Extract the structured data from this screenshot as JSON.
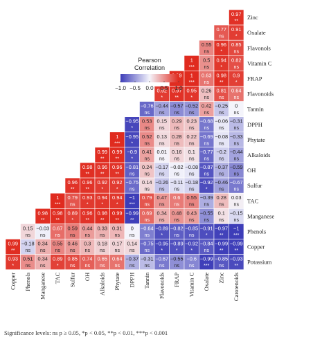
{
  "chart_data": {
    "type": "heatmap",
    "layout": "lower-triangular correlation matrix",
    "row_labels": [
      "Zinc",
      "Oxalate",
      "Flavonols",
      "Vitamin C",
      "FRAP",
      "Flavonoids",
      "Tannin",
      "DPPH",
      "Phytate",
      "Alkaloids",
      "OH",
      "Sulfur",
      "TAC",
      "Manganese",
      "Phenols",
      "Copper",
      "Potassium"
    ],
    "column_labels": [
      "Copper",
      "Phenols",
      "Manganese",
      "TAC",
      "Sulfur",
      "OH",
      "Alkaloids",
      "Phytate",
      "DPPH",
      "Tannin",
      "Flavonoids",
      "FRAP",
      "Vitamin C",
      "Oxalate",
      "Zinc",
      "Carotenoids"
    ],
    "values": [
      [
        null,
        null,
        null,
        null,
        null,
        null,
        null,
        null,
        null,
        null,
        null,
        null,
        null,
        null,
        null,
        0.97
      ],
      [
        null,
        null,
        null,
        null,
        null,
        null,
        null,
        null,
        null,
        null,
        null,
        null,
        null,
        null,
        0.77,
        0.91
      ],
      [
        null,
        null,
        null,
        null,
        null,
        null,
        null,
        null,
        null,
        null,
        null,
        null,
        null,
        0.55,
        0.96,
        0.85
      ],
      [
        null,
        null,
        null,
        null,
        null,
        null,
        null,
        null,
        null,
        null,
        null,
        null,
        1,
        0.5,
        0.94,
        0.82
      ],
      [
        null,
        null,
        null,
        null,
        null,
        null,
        null,
        null,
        null,
        null,
        null,
        0.99,
        1,
        0.63,
        0.98,
        0.9
      ],
      [
        null,
        null,
        null,
        null,
        null,
        null,
        null,
        null,
        null,
        null,
        0.92,
        0.97,
        0.95,
        0.26,
        0.81,
        0.64
      ],
      [
        null,
        null,
        null,
        null,
        null,
        null,
        null,
        null,
        null,
        -0.76,
        -0.44,
        -0.57,
        -0.52,
        0.42,
        -0.25,
        0
      ],
      [
        null,
        null,
        null,
        null,
        null,
        null,
        null,
        null,
        -0.95,
        0.53,
        0.15,
        0.29,
        0.23,
        -0.68,
        -0.06,
        -0.31
      ],
      [
        null,
        null,
        null,
        null,
        null,
        null,
        null,
        1,
        -0.95,
        0.52,
        0.13,
        0.28,
        0.22,
        -0.69,
        -0.08,
        -0.33
      ],
      [
        null,
        null,
        null,
        null,
        null,
        null,
        0.99,
        0.99,
        -0.9,
        0.41,
        0.01,
        0.16,
        0.1,
        -0.77,
        -0.2,
        -0.44
      ],
      [
        null,
        null,
        null,
        null,
        null,
        0.98,
        0.96,
        0.96,
        -0.81,
        0.24,
        -0.17,
        -0.02,
        -0.08,
        -0.87,
        -0.37,
        -0.59
      ],
      [
        null,
        null,
        null,
        null,
        0.96,
        0.96,
        0.92,
        0.92,
        -0.75,
        0.14,
        -0.26,
        -0.11,
        -0.18,
        -0.92,
        -0.46,
        -0.67
      ],
      [
        null,
        null,
        null,
        1,
        0.79,
        0.93,
        0.94,
        0.94,
        -1,
        0.79,
        0.47,
        0.6,
        0.55,
        -0.39,
        0.28,
        0.03
      ],
      [
        null,
        null,
        0.98,
        0.98,
        0.89,
        0.96,
        0.98,
        0.99,
        -0.99,
        0.69,
        0.34,
        0.48,
        0.43,
        -0.55,
        0.1,
        -0.15
      ],
      [
        null,
        0.15,
        -0.03,
        0.67,
        0.59,
        0.44,
        0.33,
        0.31,
        0,
        -0.64,
        -0.89,
        -0.82,
        -0.85,
        -0.91,
        -0.97,
        -1
      ],
      [
        0.99,
        -0.18,
        0.34,
        0.55,
        0.46,
        0.3,
        0.18,
        0.17,
        0.14,
        -0.75,
        -0.95,
        -0.89,
        -0.92,
        -0.84,
        -0.99,
        -0.99
      ],
      [
        0.93,
        0.51,
        0.34,
        0.89,
        0.85,
        0.74,
        0.65,
        0.64,
        -0.37,
        -0.31,
        -0.67,
        -0.55,
        -0.6,
        -0.99,
        -0.85,
        -0.93
      ]
    ],
    "significance": [
      [
        null,
        null,
        null,
        null,
        null,
        null,
        null,
        null,
        null,
        null,
        null,
        null,
        null,
        null,
        null,
        "**"
      ],
      [
        null,
        null,
        null,
        null,
        null,
        null,
        null,
        null,
        null,
        null,
        null,
        null,
        null,
        null,
        "ns",
        "*"
      ],
      [
        null,
        null,
        null,
        null,
        null,
        null,
        null,
        null,
        null,
        null,
        null,
        null,
        null,
        "ns",
        "*",
        "ns"
      ],
      [
        null,
        null,
        null,
        null,
        null,
        null,
        null,
        null,
        null,
        null,
        null,
        null,
        "***",
        "ns",
        "*",
        "ns"
      ],
      [
        null,
        null,
        null,
        null,
        null,
        null,
        null,
        null,
        null,
        null,
        null,
        "**",
        "***",
        "ns",
        "**",
        "*"
      ],
      [
        null,
        null,
        null,
        null,
        null,
        null,
        null,
        null,
        null,
        null,
        "*",
        "**",
        "*",
        "ns",
        "ns",
        "ns"
      ],
      [
        null,
        null,
        null,
        null,
        null,
        null,
        null,
        null,
        null,
        "ns",
        "ns",
        "ns",
        "ns",
        "ns",
        "ns",
        "ns"
      ],
      [
        null,
        null,
        null,
        null,
        null,
        null,
        null,
        null,
        "*",
        "ns",
        "ns",
        "ns",
        "ns",
        "ns",
        "ns",
        "ns"
      ],
      [
        null,
        null,
        null,
        null,
        null,
        null,
        null,
        "***",
        "*",
        "ns",
        "ns",
        "ns",
        "ns",
        "ns",
        "ns",
        "ns"
      ],
      [
        null,
        null,
        null,
        null,
        null,
        null,
        "**",
        "**",
        "*",
        "ns",
        "ns",
        "ns",
        "ns",
        "ns",
        "ns",
        "ns"
      ],
      [
        null,
        null,
        null,
        null,
        null,
        "**",
        "**",
        "**",
        "ns",
        "ns",
        "ns",
        "ns",
        "ns",
        "ns",
        "ns",
        "ns"
      ],
      [
        null,
        null,
        null,
        null,
        "**",
        "**",
        "*",
        "*",
        "ns",
        "ns",
        "ns",
        "ns",
        "ns",
        "*",
        "ns",
        "ns"
      ],
      [
        null,
        null,
        null,
        "***",
        "ns",
        "*",
        "*",
        "*",
        "***",
        "ns",
        "ns",
        "ns",
        "ns",
        "ns",
        "ns",
        "ns"
      ],
      [
        null,
        null,
        "**",
        "**",
        "*",
        "**",
        "**",
        "**",
        "**",
        "ns",
        "ns",
        "ns",
        "ns",
        "ns",
        "ns",
        "ns"
      ],
      [
        null,
        "ns",
        "ns",
        "ns",
        "ns",
        "ns",
        "ns",
        "ns",
        "ns",
        "ns",
        "*",
        "ns",
        "ns",
        "*",
        "**",
        "***"
      ],
      [
        "**",
        "ns",
        "ns",
        "ns",
        "ns",
        "ns",
        "ns",
        "ns",
        "ns",
        "ns",
        "*",
        "*",
        "*",
        "ns",
        "**",
        "**"
      ],
      [
        "*",
        "ns",
        "ns",
        "*",
        "ns",
        "ns",
        "ns",
        "ns",
        "ns",
        "ns",
        "ns",
        "ns",
        "ns",
        "***",
        "ns",
        "**"
      ]
    ],
    "colorscale": {
      "low": -1.0,
      "mid": 0,
      "high": 1.0,
      "low_color": "#3d3db8",
      "mid_color": "#f4f4fb",
      "high_color": "#e02b1f"
    },
    "legend": {
      "title_lines": [
        "Pearson",
        "Correlation"
      ],
      "ticks": [
        "−1.0",
        "−0.5",
        "0.0",
        "0.5",
        "1.0"
      ],
      "tick_values": [
        -1.0,
        -0.5,
        0.0,
        0.5,
        1.0
      ],
      "placement": "upper-left"
    },
    "footnote": "Significance levels: ns p ≥ 0.05, *p < 0.05, **p < 0.01, ***p < 0.001"
  }
}
